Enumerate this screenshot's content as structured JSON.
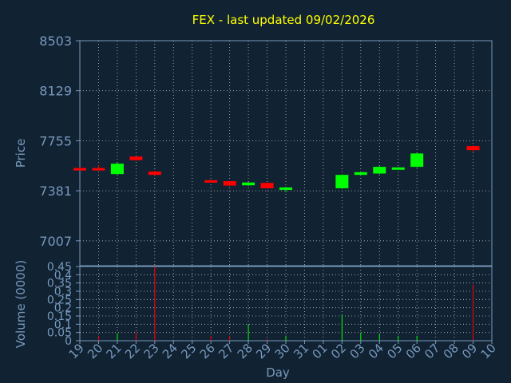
{
  "chart_data": {
    "type": "candlestick",
    "title": "FEX - last updated 09/02/2026",
    "price_axis": {
      "label": "Price",
      "ticks": [
        "8503",
        "8129",
        "7755",
        "7381",
        "7007"
      ],
      "range": [
        6821,
        8503
      ]
    },
    "volume_axis": {
      "label": "Volume (0000)",
      "ticks": [
        "0.45",
        "0.4",
        "0.35",
        "0.3",
        "0.25",
        "0.2",
        "0.15",
        "0.1",
        "0.05",
        "0"
      ],
      "range": [
        0,
        0.45
      ]
    },
    "x_axis": {
      "label": "Day",
      "ticks": [
        "19",
        "20",
        "21",
        "22",
        "23",
        "24",
        "25",
        "26",
        "27",
        "28",
        "29",
        "30",
        "31",
        "01",
        "02",
        "03",
        "04",
        "05",
        "06",
        "07",
        "08",
        "09",
        "10"
      ]
    },
    "grid": true,
    "candles": [
      {
        "day": "19",
        "open": 7551,
        "close": 7541,
        "high": 7556,
        "low": 7538,
        "color": "red"
      },
      {
        "day": "20",
        "open": 7551,
        "close": 7538,
        "high": 7574,
        "low": 7535,
        "color": "red"
      },
      {
        "day": "21",
        "open": 7506,
        "close": 7584,
        "high": 7590,
        "low": 7500,
        "color": "green"
      },
      {
        "day": "22",
        "open": 7637,
        "close": 7610,
        "high": 7640,
        "low": 7606,
        "color": "red"
      },
      {
        "day": "23",
        "open": 7525,
        "close": 7500,
        "high": 7530,
        "low": 7497,
        "color": "red"
      },
      {
        "day": "26",
        "open": 7460,
        "close": 7450,
        "high": 7463,
        "low": 7447,
        "color": "red"
      },
      {
        "day": "27",
        "open": 7453,
        "close": 7420,
        "high": 7456,
        "low": 7415,
        "color": "red"
      },
      {
        "day": "28",
        "open": 7422,
        "close": 7443,
        "high": 7446,
        "low": 7418,
        "color": "green"
      },
      {
        "day": "29",
        "open": 7440,
        "close": 7400,
        "high": 7443,
        "low": 7397,
        "color": "red"
      },
      {
        "day": "30",
        "open": 7390,
        "close": 7406,
        "high": 7410,
        "low": 7370,
        "color": "green"
      },
      {
        "day": "02",
        "open": 7400,
        "close": 7500,
        "high": 7503,
        "low": 7396,
        "color": "green"
      },
      {
        "day": "03",
        "open": 7500,
        "close": 7520,
        "high": 7524,
        "low": 7496,
        "color": "green"
      },
      {
        "day": "04",
        "open": 7510,
        "close": 7560,
        "high": 7565,
        "low": 7506,
        "color": "green"
      },
      {
        "day": "05",
        "open": 7548,
        "close": 7556,
        "high": 7558,
        "low": 7545,
        "color": "green"
      },
      {
        "day": "06",
        "open": 7560,
        "close": 7660,
        "high": 7665,
        "low": 7556,
        "color": "green"
      },
      {
        "day": "09",
        "open": 7715,
        "close": 7685,
        "high": 7720,
        "low": 7670,
        "color": "red"
      }
    ],
    "volumes": [
      {
        "day": "19",
        "value": 0.0,
        "color": "red"
      },
      {
        "day": "20",
        "value": 0.03,
        "color": "red"
      },
      {
        "day": "21",
        "value": 0.045,
        "color": "green"
      },
      {
        "day": "22",
        "value": 0.05,
        "color": "red"
      },
      {
        "day": "23",
        "value": 0.45,
        "color": "red"
      },
      {
        "day": "26",
        "value": 0.03,
        "color": "red"
      },
      {
        "day": "27",
        "value": 0.03,
        "color": "red"
      },
      {
        "day": "28",
        "value": 0.1,
        "color": "green"
      },
      {
        "day": "29",
        "value": 0.01,
        "color": "red"
      },
      {
        "day": "30",
        "value": 0.03,
        "color": "green"
      },
      {
        "day": "02",
        "value": 0.16,
        "color": "green"
      },
      {
        "day": "03",
        "value": 0.05,
        "color": "green"
      },
      {
        "day": "04",
        "value": 0.04,
        "color": "green"
      },
      {
        "day": "05",
        "value": 0.03,
        "color": "green"
      },
      {
        "day": "06",
        "value": 0.03,
        "color": "green"
      },
      {
        "day": "09",
        "value": 0.34,
        "color": "red"
      }
    ],
    "colors": {
      "background": "#112233",
      "axis": "#7799bb",
      "title": "#ffff00",
      "up": "#00ff00",
      "down": "#ff0000",
      "grid": "#c0c0c0"
    }
  }
}
